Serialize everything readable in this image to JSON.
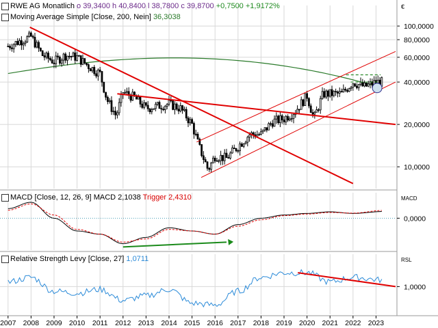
{
  "colors": {
    "candle": "#000000",
    "ma": "#2a7a2a",
    "trend": "#e00000",
    "channel": "#e00000",
    "macd": "#000000",
    "trigger": "#e00000",
    "rsl": "#2a8ad8",
    "grid": "#d8d8d8",
    "arrow": "#1a8a1a"
  },
  "header": {
    "name": "RWE AG",
    "period": "Monatlich",
    "o": "o 39,3400",
    "h": "h 40,8400",
    "l": "l 38,7800",
    "c": "c 39,8700",
    "chg": "+0,7500",
    "chg_pct": "+1,9172%",
    "ma_label": "Moving Average Simple",
    "ma_params": "[Close, 200, Nein]",
    "ma_value": "36,3038",
    "currency": "€"
  },
  "macd_header": {
    "label": "MACD",
    "params": "[Close, 12, 26, 9]",
    "macd_label": "MACD",
    "macd_value": "2,1038",
    "trigger_label": "Trigger",
    "trigger_value": "2,4310",
    "axis_label": "MACD"
  },
  "rsl_header": {
    "label": "Relative Strength Levy",
    "params": "[Close, 27]",
    "value": "1,0711",
    "axis_label": "RSL"
  },
  "price_ticks": [
    "100,0000",
    "80,0000",
    "60,0000",
    "40,0000",
    "20,0000",
    "10,0000"
  ],
  "price_tick_values": [
    100,
    80,
    60,
    40,
    20,
    10
  ],
  "macd_ticks": [
    "0,0000"
  ],
  "rsl_ticks": [
    "1,0000"
  ],
  "x_ticks": [
    "2007",
    "2008",
    "2009",
    "2010",
    "2011",
    "2012",
    "2013",
    "2014",
    "2015",
    "2016",
    "2017",
    "2018",
    "2019",
    "2020",
    "2021",
    "2022",
    "2023"
  ],
  "chart_data": [
    {
      "type": "candlestick",
      "title": "RWE AG Monatlich",
      "scale": "log",
      "ylim": [
        7,
        140
      ],
      "x": [
        2007.0,
        2007.5,
        2008.0,
        2008.5,
        2009.0,
        2009.5,
        2010.0,
        2010.5,
        2011.0,
        2011.3,
        2011.7,
        2012.0,
        2012.5,
        2013.0,
        2013.5,
        2014.0,
        2014.5,
        2015.0,
        2015.3,
        2015.7,
        2016.0,
        2016.5,
        2017.0,
        2017.5,
        2018.0,
        2018.5,
        2019.0,
        2019.5,
        2020.0,
        2020.3,
        2020.7,
        2021.0,
        2021.5,
        2022.0,
        2022.5,
        2023.0,
        2023.3
      ],
      "close": [
        72,
        78,
        84,
        62,
        56,
        62,
        60,
        52,
        46,
        30,
        23,
        34,
        31,
        26,
        27,
        28,
        26,
        20,
        14,
        9.5,
        12,
        11.5,
        14,
        17,
        17,
        21,
        22,
        25,
        32,
        22,
        33,
        33,
        33,
        40,
        37,
        40,
        39.87
      ],
      "series": [
        {
          "name": "Moving Average Simple [Close, 200, Nein]",
          "last": 36.3038
        }
      ],
      "annotations": [
        "downtrend line from 2008 high",
        "resistance line 2012–2023",
        "rising channel 2015–2023",
        "horizontal range marker 2022–2023"
      ]
    },
    {
      "type": "line",
      "title": "MACD [Close, 12, 26, 9]",
      "series": [
        {
          "name": "MACD",
          "x": [
            2007.0,
            2008.0,
            2009.0,
            2010.0,
            2011.0,
            2012.0,
            2013.0,
            2014.0,
            2015.0,
            2016.0,
            2017.0,
            2018.0,
            2019.0,
            2020.0,
            2021.0,
            2022.0,
            2023.3
          ],
          "values": [
            3,
            5,
            0,
            -4,
            -5,
            -8,
            -6,
            -3,
            -4,
            -5,
            -2,
            0,
            1,
            1.5,
            2,
            1.5,
            2.1038
          ]
        },
        {
          "name": "Trigger",
          "x": [
            2007.0,
            2008.0,
            2009.0,
            2010.0,
            2011.0,
            2012.0,
            2013.0,
            2014.0,
            2015.0,
            2016.0,
            2017.0,
            2018.0,
            2019.0,
            2020.0,
            2021.0,
            2022.0,
            2023.3
          ],
          "values": [
            2.5,
            4.5,
            1,
            -3.5,
            -5,
            -7.5,
            -6.5,
            -3.5,
            -4,
            -5,
            -2.5,
            -0.5,
            0.8,
            1.3,
            1.8,
            1.6,
            2.431
          ]
        }
      ]
    },
    {
      "type": "line",
      "title": "Relative Strength Levy [Close, 27]",
      "series": [
        {
          "name": "Relative Strength Levy",
          "x": [
            2007.0,
            2008.0,
            2009.0,
            2010.0,
            2011.0,
            2012.0,
            2013.0,
            2014.0,
            2015.0,
            2016.0,
            2017.0,
            2018.0,
            2019.0,
            2020.0,
            2021.0,
            2022.0,
            2023.3
          ],
          "values": [
            1.05,
            1.1,
            0.95,
            0.93,
            0.97,
            0.85,
            0.9,
            0.97,
            0.82,
            0.8,
            0.95,
            1.1,
            1.15,
            1.15,
            1.05,
            1.1,
            1.0711
          ]
        }
      ]
    }
  ]
}
